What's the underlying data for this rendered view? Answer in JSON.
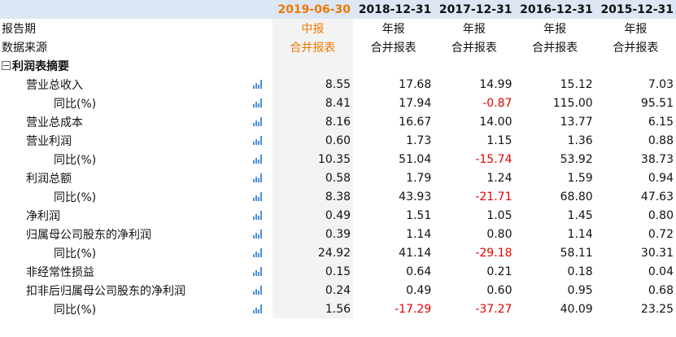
{
  "columns": [
    "2019-06-30",
    "2018-12-31",
    "2017-12-31",
    "2016-12-31",
    "2015-12-31"
  ],
  "meta_rows": [
    {
      "label": "报告期",
      "values": [
        "中报",
        "年报",
        "年报",
        "年报",
        "年报"
      ]
    },
    {
      "label": "数据来源",
      "values": [
        "合并报表",
        "合并报表",
        "合并报表",
        "合并报表",
        "合并报表"
      ]
    }
  ],
  "section": {
    "label": "利润表摘要",
    "toggle": "⊟"
  },
  "rows": [
    {
      "label": "营业总收入",
      "indent": 1,
      "values": [
        "8.55",
        "17.68",
        "14.99",
        "15.12",
        "7.03"
      ]
    },
    {
      "label": "同比(%)",
      "indent": 2,
      "values": [
        "8.41",
        "17.94",
        "-0.87",
        "115.00",
        "95.51"
      ]
    },
    {
      "label": "营业总成本",
      "indent": 1,
      "values": [
        "8.16",
        "16.67",
        "14.00",
        "13.77",
        "6.15"
      ]
    },
    {
      "label": "营业利润",
      "indent": 1,
      "values": [
        "0.60",
        "1.73",
        "1.15",
        "1.36",
        "0.88"
      ]
    },
    {
      "label": "同比(%)",
      "indent": 2,
      "values": [
        "10.35",
        "51.04",
        "-15.74",
        "53.92",
        "38.73"
      ]
    },
    {
      "label": "利润总额",
      "indent": 1,
      "values": [
        "0.58",
        "1.79",
        "1.24",
        "1.59",
        "0.94"
      ]
    },
    {
      "label": "同比(%)",
      "indent": 2,
      "values": [
        "8.38",
        "43.93",
        "-21.71",
        "68.80",
        "47.63"
      ]
    },
    {
      "label": "净利润",
      "indent": 1,
      "values": [
        "0.49",
        "1.51",
        "1.05",
        "1.45",
        "0.80"
      ]
    },
    {
      "label": "归属母公司股东的净利润",
      "indent": 1,
      "values": [
        "0.39",
        "1.14",
        "0.80",
        "1.14",
        "0.72"
      ]
    },
    {
      "label": "同比(%)",
      "indent": 2,
      "values": [
        "24.92",
        "41.14",
        "-29.18",
        "58.11",
        "30.31"
      ]
    },
    {
      "label": "非经常性损益",
      "indent": 1,
      "values": [
        "0.15",
        "0.64",
        "0.21",
        "0.18",
        "0.04"
      ]
    },
    {
      "label": "扣非后归属母公司股东的净利润",
      "indent": 1,
      "values": [
        "0.24",
        "0.49",
        "0.60",
        "0.95",
        "0.68"
      ]
    },
    {
      "label": "同比(%)",
      "indent": 2,
      "values": [
        "1.56",
        "-17.29",
        "-37.27",
        "40.09",
        "23.25"
      ]
    }
  ],
  "colors": {
    "header_bg": "#dce6f4",
    "selected_period": "#f07800",
    "negative": "#e60000",
    "chart_icon": "#4a90d9"
  },
  "icons": {
    "row_chart": "bar-chart-icon",
    "section_toggle": "collapse-icon"
  }
}
